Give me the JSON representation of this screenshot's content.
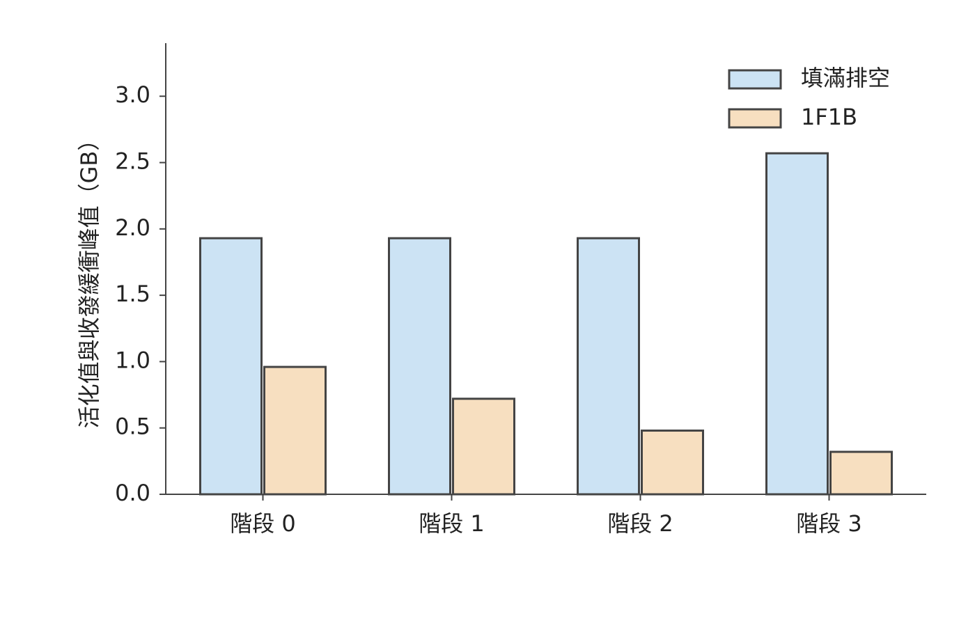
{
  "chart_data": {
    "type": "bar",
    "y_label": "活化值與收發緩衝峰值（GB）",
    "categories": [
      "階段 0",
      "階段 1",
      "階段 2",
      "階段 3"
    ],
    "series": [
      {
        "name": "填滿排空",
        "color": "#cce3f4",
        "values": [
          1.93,
          1.93,
          1.93,
          2.57
        ]
      },
      {
        "name": "1F1B",
        "color": "#f7dfc0",
        "values": [
          0.96,
          0.72,
          0.48,
          0.32
        ]
      }
    ],
    "ylim": [
      0,
      3.4
    ],
    "yticks": [
      {
        "value": 0,
        "label": "0.0"
      },
      {
        "value": 0.5,
        "label": "0.5"
      },
      {
        "value": 1,
        "label": "1.0"
      },
      {
        "value": 1.5,
        "label": "1.5"
      },
      {
        "value": 2,
        "label": "2.0"
      },
      {
        "value": 2.5,
        "label": "2.5"
      },
      {
        "value": 3,
        "label": "3.0"
      }
    ],
    "legend": "upper right"
  }
}
